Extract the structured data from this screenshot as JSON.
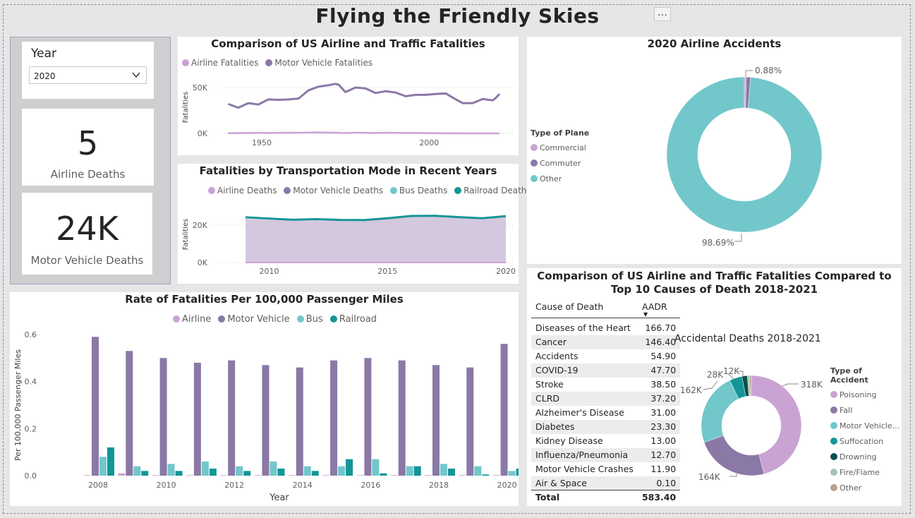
{
  "page_title": "Flying the Friendly Skies",
  "more_icon": "…",
  "slicer": {
    "label": "Year",
    "selected": "2020"
  },
  "card_airline": {
    "value": "5",
    "label": "Airline Deaths"
  },
  "card_motor": {
    "value": "24K",
    "label": "Motor Vehicle Deaths"
  },
  "colors": {
    "airline": "#c9a3d3",
    "motor": "#8a78a6",
    "bus": "#72c7cb",
    "railroad": "#149596",
    "drowning": "#0e4f4f",
    "fire": "#a3c3b8",
    "other": "#b8a392"
  },
  "chart_comparison": {
    "title": "Comparison of US Airline and Traffic Fatalities",
    "legend": [
      "Airline Fatalities",
      "Motor Vehicle Fatalities"
    ],
    "ylabel": "Fatalities",
    "yticks": [
      "50K",
      "0K"
    ],
    "xticks": [
      "1950",
      "2000"
    ]
  },
  "chart_modes": {
    "title": "Fatalities by Transportation Mode in Recent Years",
    "legend": [
      "Airline Deaths",
      "Motor Vehicle Deaths",
      "Bus Deaths",
      "Railroad Deaths"
    ],
    "ylabel": "Fatalities",
    "yticks": [
      "20K",
      "0K"
    ],
    "xticks": [
      "2010",
      "2015",
      "2020"
    ]
  },
  "chart_accidents2020": {
    "title": "2020 Airline Accidents",
    "legend_title": "Type of Plane",
    "legend": [
      "Commercial",
      "Commuter",
      "Other"
    ],
    "label_small": "0.88%",
    "label_big": "98.69%"
  },
  "chart_rate": {
    "title": "Rate of Fatalities Per 100,000 Passenger Miles",
    "legend": [
      "Airline",
      "Motor Vehicle",
      "Bus",
      "Railroad"
    ],
    "ylabel": "Per 100,000 Passenger Miles",
    "xlabel": "Year",
    "yticks": [
      "0.6",
      "0.4",
      "0.2",
      "0.0"
    ],
    "xticks": [
      "2008",
      "2010",
      "2012",
      "2014",
      "2016",
      "2018",
      "2020"
    ]
  },
  "table_panel": {
    "title": "Comparison of US Airline and Traffic Fatalities Compared to Top 10 Causes of Death 2018-2021",
    "col1": "Cause of Death",
    "col2": "AADR",
    "sort_icon": "▼",
    "rows": [
      [
        "Diseases of the Heart",
        "166.70"
      ],
      [
        "Cancer",
        "146.40"
      ],
      [
        "Accidents",
        "54.90"
      ],
      [
        "COVID-19",
        "47.70"
      ],
      [
        "Stroke",
        "38.50"
      ],
      [
        "CLRD",
        "37.20"
      ],
      [
        "Alzheimer's Disease",
        "31.00"
      ],
      [
        "Diabetes",
        "23.30"
      ],
      [
        "Kidney Disease",
        "13.00"
      ],
      [
        "Influenza/Pneumonia",
        "12.70"
      ],
      [
        "Motor Vehicle Crashes",
        "11.90"
      ],
      [
        "Air & Space",
        "0.10"
      ]
    ],
    "total_label": "Total",
    "total_value": "583.40"
  },
  "chart_accidental": {
    "title": "Accidental Deaths 2018-2021",
    "legend_title": "Type of Accident",
    "legend": [
      "Poisoning",
      "Fall",
      "Motor Vehicle...",
      "Suffocation",
      "Drowning",
      "Fire/Flame",
      "Other"
    ],
    "labels": [
      "318K",
      "164K",
      "162K",
      "28K",
      "12K"
    ]
  },
  "chart_data": [
    {
      "type": "line",
      "title": "Comparison of US Airline and Traffic Fatalities",
      "ylabel": "Fatalities",
      "ylim": [
        0,
        60000
      ],
      "x": [
        1940,
        1943,
        1946,
        1949,
        1952,
        1955,
        1958,
        1961,
        1964,
        1967,
        1970,
        1972,
        1973,
        1975,
        1978,
        1981,
        1984,
        1987,
        1990,
        1993,
        1996,
        1999,
        2002,
        2005,
        2008,
        2010,
        2013,
        2016,
        2019,
        2020,
        2021
      ],
      "series": [
        {
          "name": "Motor Vehicle Fatalities",
          "values": [
            32000,
            28000,
            33000,
            31500,
            37000,
            36500,
            37000,
            38000,
            47000,
            51000,
            52500,
            54000,
            53000,
            45000,
            50000,
            49000,
            44000,
            46000,
            44500,
            40500,
            42000,
            42000,
            43000,
            43500,
            37000,
            33000,
            33000,
            37500,
            36000,
            39000,
            43000
          ]
        },
        {
          "name": "Airline Fatalities",
          "values": [
            200,
            300,
            500,
            600,
            500,
            600,
            800,
            700,
            900,
            1100,
            800,
            900,
            600,
            500,
            800,
            600,
            500,
            700,
            600,
            500,
            600,
            300,
            200,
            100,
            50,
            20,
            30,
            20,
            10,
            5,
            5
          ]
        }
      ]
    },
    {
      "type": "area",
      "title": "Fatalities by Transportation Mode in Recent Years",
      "ylabel": "Fatalities",
      "ylim": [
        0,
        30000
      ],
      "x": [
        2009,
        2010,
        2011,
        2012,
        2013,
        2014,
        2015,
        2016,
        2017,
        2018,
        2019,
        2020
      ],
      "series": [
        {
          "name": "Motor Vehicle Deaths",
          "values": [
            23500,
            22800,
            22300,
            22600,
            22300,
            22200,
            23200,
            24400,
            24500,
            23800,
            23200,
            24300
          ]
        },
        {
          "name": "Railroad Deaths",
          "values": [
            24200,
            23500,
            22900,
            23200,
            22800,
            22700,
            23700,
            24900,
            25000,
            24300,
            23700,
            24800
          ]
        }
      ]
    },
    {
      "type": "pie",
      "title": "2020 Airline Accidents",
      "categories": [
        "Commercial",
        "Commuter",
        "Other"
      ],
      "values": [
        0.43,
        0.88,
        98.69
      ]
    },
    {
      "type": "bar",
      "title": "Rate of Fatalities Per 100,000 Passenger Miles",
      "xlabel": "Year",
      "ylabel": "Per 100,000 Passenger Miles",
      "ylim": [
        0,
        0.6
      ],
      "categories": [
        "2008",
        "2009",
        "2010",
        "2011",
        "2012",
        "2013",
        "2014",
        "2015",
        "2016",
        "2017",
        "2018",
        "2019",
        "2020"
      ],
      "series": [
        {
          "name": "Airline",
          "values": [
            0.001,
            0.01,
            0.001,
            0.001,
            0.001,
            0.001,
            0.001,
            0.001,
            0.001,
            0.001,
            0.001,
            0.001,
            0.001
          ]
        },
        {
          "name": "Motor Vehicle",
          "values": [
            0.59,
            0.53,
            0.5,
            0.48,
            0.49,
            0.47,
            0.46,
            0.49,
            0.5,
            0.49,
            0.47,
            0.46,
            0.56
          ]
        },
        {
          "name": "Bus",
          "values": [
            0.08,
            0.04,
            0.05,
            0.06,
            0.04,
            0.06,
            0.04,
            0.04,
            0.07,
            0.04,
            0.05,
            0.04,
            0.02
          ]
        },
        {
          "name": "Railroad",
          "values": [
            0.12,
            0.02,
            0.02,
            0.03,
            0.02,
            0.03,
            0.02,
            0.07,
            0.01,
            0.04,
            0.03,
            0.005,
            0.03
          ]
        }
      ]
    },
    {
      "type": "pie",
      "title": "Accidental Deaths 2018-2021",
      "categories": [
        "Poisoning",
        "Fall",
        "Motor Vehicle...",
        "Suffocation",
        "Drowning",
        "Fire/Flame",
        "Other"
      ],
      "values": [
        318000,
        164000,
        162000,
        28000,
        12000,
        5000,
        4000
      ]
    }
  ]
}
